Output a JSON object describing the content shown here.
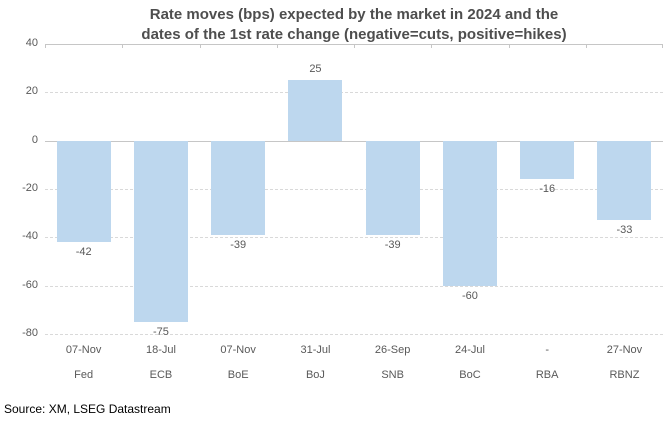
{
  "title": {
    "line1": "Rate moves (bps) expected by the market in 2024 and the",
    "line2": "dates of the 1st rate change (negative=cuts, positive=hikes)"
  },
  "source": "Source: XM, LSEG Datastream",
  "chart_data": {
    "type": "bar",
    "title": "Rate moves (bps) expected by the market in 2024 and the dates of the 1st rate change (negative=cuts, positive=hikes)",
    "categories": [
      "Fed",
      "ECB",
      "BoE",
      "BoJ",
      "SNB",
      "BoC",
      "RBA",
      "RBNZ"
    ],
    "first_change_dates": [
      "07-Nov",
      "18-Jul",
      "07-Nov",
      "31-Jul",
      "26-Sep",
      "24-Jul",
      "-",
      "27-Nov"
    ],
    "values": [
      -42,
      -75,
      -39,
      25,
      -39,
      -60,
      -16,
      -33
    ],
    "xlabel": "",
    "ylabel": "",
    "ylim": [
      -80,
      40
    ],
    "yticks": [
      40,
      20,
      0,
      -20,
      -40,
      -60,
      -80
    ],
    "legend": "none",
    "grid": "horizontal-dashed",
    "bar_color": "#BDD7EE",
    "axis_line_color": "#C6C6C6",
    "gridline_color": "#D9D9D9",
    "label_color": "#595959",
    "title_color": "#4E4E4E"
  }
}
